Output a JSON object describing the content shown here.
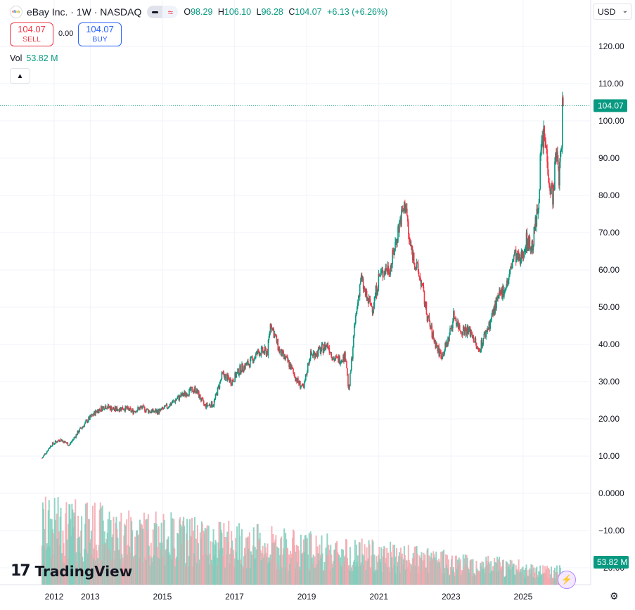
{
  "header": {
    "logo_text": "ebay",
    "title": "eBay Inc. · 1W · NASDAQ",
    "open_label": "O",
    "open": "98.29",
    "high_label": "H",
    "high": "106.10",
    "low_label": "L",
    "low": "96.28",
    "close_label": "C",
    "close": "104.07",
    "change": "+6.13 (+6.26%)",
    "indicator_icon": "wave-icon"
  },
  "trade": {
    "sell_price": "104.07",
    "sell_label": "SELL",
    "spread": "0.00",
    "buy_price": "104.07",
    "buy_label": "BUY"
  },
  "volume": {
    "label": "Vol",
    "value": "53.82 M"
  },
  "currency": "USD",
  "branding": {
    "mark": "17",
    "name": "TradingView"
  },
  "colors": {
    "up": "#089981",
    "down": "#f23645",
    "up_vol": "#7fcdbb",
    "down_vol": "#f5a6ad",
    "price_tag": "#089981"
  },
  "chart_data": {
    "type": "candlestick",
    "title": "eBay Inc. · 1W · NASDAQ",
    "interval": "1W",
    "x_ticks": [
      "2012",
      "2013",
      "2015",
      "2017",
      "2019",
      "2021",
      "2023",
      "2025"
    ],
    "y_ticks": [
      "120.00",
      "110.00",
      "100.00",
      "90.00",
      "80.00",
      "70.00",
      "60.00",
      "50.00",
      "40.00",
      "30.00",
      "20.00",
      "10.00",
      "0.0000",
      "−10.00",
      "−20.00"
    ],
    "y_range": [
      -20,
      123
    ],
    "last_price": "104.07",
    "last_volume": "53.82 M",
    "price_path": [
      [
        "2011-09",
        9.5
      ],
      [
        "2011-12",
        13.0
      ],
      [
        "2012-03",
        14.5
      ],
      [
        "2012-06",
        13.0
      ],
      [
        "2012-09",
        16.5
      ],
      [
        "2012-12",
        19.5
      ],
      [
        "2013-03",
        22.0
      ],
      [
        "2013-06",
        23.5
      ],
      [
        "2013-09",
        22.5
      ],
      [
        "2013-12",
        23.0
      ],
      [
        "2014-03",
        22.0
      ],
      [
        "2014-06",
        23.0
      ],
      [
        "2014-09",
        22.0
      ],
      [
        "2014-12",
        22.0
      ],
      [
        "2015-03",
        23.5
      ],
      [
        "2015-06",
        25.5
      ],
      [
        "2015-09",
        27.0
      ],
      [
        "2015-12",
        28.0
      ],
      [
        "2016-03",
        23.5
      ],
      [
        "2016-06",
        24.0
      ],
      [
        "2016-09",
        32.0
      ],
      [
        "2016-12",
        30.0
      ],
      [
        "2017-03",
        33.5
      ],
      [
        "2017-06",
        35.0
      ],
      [
        "2017-09",
        38.0
      ],
      [
        "2017-12",
        38.0
      ],
      [
        "2018-01",
        46.0
      ],
      [
        "2018-04",
        38.0
      ],
      [
        "2018-07",
        35.0
      ],
      [
        "2018-10",
        30.0
      ],
      [
        "2018-12",
        28.0
      ],
      [
        "2019-02",
        37.0
      ],
      [
        "2019-05",
        38.0
      ],
      [
        "2019-08",
        40.0
      ],
      [
        "2019-10",
        36.0
      ],
      [
        "2019-12",
        36.0
      ],
      [
        "2020-02",
        37.0
      ],
      [
        "2020-03",
        27.0
      ],
      [
        "2020-05",
        45.0
      ],
      [
        "2020-07",
        58.0
      ],
      [
        "2020-09",
        52.0
      ],
      [
        "2020-11",
        50.0
      ],
      [
        "2021-01",
        58.0
      ],
      [
        "2021-03",
        60.0
      ],
      [
        "2021-05",
        61.0
      ],
      [
        "2021-08",
        73.0
      ],
      [
        "2021-10",
        78.0
      ],
      [
        "2021-11",
        68.0
      ],
      [
        "2022-01",
        62.0
      ],
      [
        "2022-03",
        57.0
      ],
      [
        "2022-05",
        48.0
      ],
      [
        "2022-07",
        42.0
      ],
      [
        "2022-09",
        38.0
      ],
      [
        "2022-10",
        37.0
      ],
      [
        "2022-12",
        41.0
      ],
      [
        "2023-02",
        48.0
      ],
      [
        "2023-04",
        44.0
      ],
      [
        "2023-06",
        44.0
      ],
      [
        "2023-08",
        43.0
      ],
      [
        "2023-10",
        38.0
      ],
      [
        "2023-12",
        42.0
      ],
      [
        "2024-02",
        46.0
      ],
      [
        "2024-04",
        51.0
      ],
      [
        "2024-06",
        54.0
      ],
      [
        "2024-08",
        57.0
      ],
      [
        "2024-10",
        64.0
      ],
      [
        "2024-12",
        62.0
      ],
      [
        "2025-02",
        68.0
      ],
      [
        "2025-04",
        66.0
      ],
      [
        "2025-06",
        77.0
      ],
      [
        "2025-07",
        93.0
      ],
      [
        "2025-08",
        96.0
      ],
      [
        "2025-09",
        90.0
      ],
      [
        "2025-10",
        82.0
      ],
      [
        "2025-11",
        80.0
      ],
      [
        "2025-12",
        92.0
      ],
      [
        "2026-01",
        85.0
      ],
      [
        "2026-02",
        97.0
      ],
      [
        "2026-02",
        104.07
      ]
    ]
  }
}
